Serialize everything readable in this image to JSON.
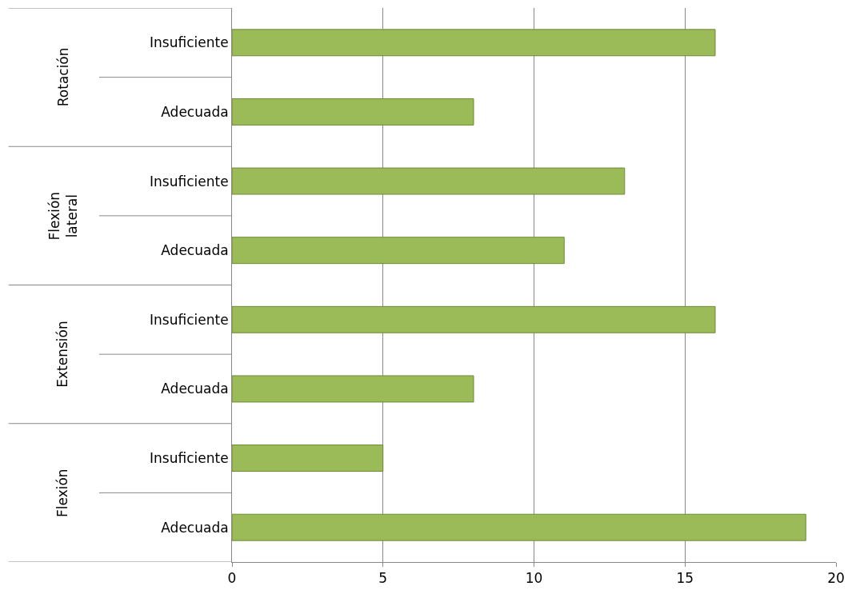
{
  "chart_data": {
    "type": "bar",
    "orientation": "horizontal",
    "categories": [
      "Insuficiente",
      "Adecuada",
      "Insuficiente",
      "Adecuada",
      "Insuficiente",
      "Adecuada",
      "Insuficiente",
      "Adecuada"
    ],
    "values": [
      16,
      8,
      13,
      11,
      16,
      8,
      5,
      19
    ],
    "color": "#9bbb59",
    "xlim": [
      0,
      20
    ],
    "xticks": [
      0,
      5,
      10,
      15,
      20
    ],
    "grid": "x",
    "legend": false,
    "annotations": [
      "Rotación",
      "Flexión lateral",
      "Extensión",
      "Flexión"
    ]
  }
}
